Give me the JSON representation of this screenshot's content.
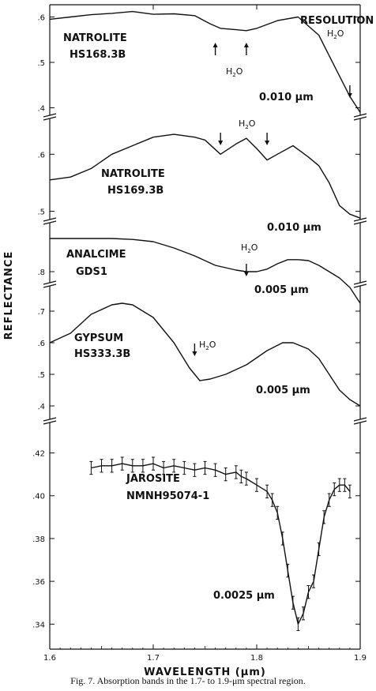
{
  "chart_data": {
    "type": "line",
    "xlabel": "WAVELENGTH (μm)",
    "ylabel": "REFLECTANCE",
    "xlim": [
      1.6,
      1.9
    ],
    "x_ticks": [
      "1.6",
      "1.7",
      "1.8",
      "1.9"
    ],
    "resolution_header": "RESOLUTION",
    "h2o_label": "H2O",
    "panels": [
      {
        "name": "NATROLITE",
        "sample": "HS168.3B",
        "resolution": "0.010 μm",
        "ylim": [
          0.38,
          0.62
        ],
        "y_ticks": [
          {
            "v": 0.6,
            "t": ".6"
          },
          {
            "v": 0.5,
            "t": ".5"
          },
          {
            "v": 0.4,
            "t": ".4"
          }
        ],
        "h2o_arrows": [
          1.76,
          1.79,
          1.89
        ],
        "x": [
          1.6,
          1.62,
          1.64,
          1.66,
          1.68,
          1.7,
          1.72,
          1.74,
          1.755,
          1.765,
          1.78,
          1.79,
          1.8,
          1.82,
          1.84,
          1.86,
          1.87,
          1.88,
          1.89,
          1.9
        ],
        "y": [
          0.595,
          0.6,
          0.605,
          0.608,
          0.612,
          0.606,
          0.607,
          0.603,
          0.585,
          0.575,
          0.572,
          0.57,
          0.575,
          0.592,
          0.6,
          0.56,
          0.515,
          0.47,
          0.425,
          0.39
        ]
      },
      {
        "name": "NATROLITE",
        "sample": "HS169.3B",
        "resolution": "0.010 μm",
        "ylim": [
          0.48,
          0.66
        ],
        "y_ticks": [
          {
            "v": 0.6,
            "t": ".6"
          },
          {
            "v": 0.5,
            "t": ".5"
          }
        ],
        "h2o_arrows": [
          1.765,
          1.81
        ],
        "x": [
          1.6,
          1.62,
          1.64,
          1.66,
          1.68,
          1.7,
          1.72,
          1.74,
          1.75,
          1.765,
          1.78,
          1.79,
          1.8,
          1.81,
          1.82,
          1.835,
          1.85,
          1.86,
          1.87,
          1.88,
          1.89,
          1.9
        ],
        "y": [
          0.555,
          0.56,
          0.575,
          0.6,
          0.615,
          0.63,
          0.635,
          0.63,
          0.625,
          0.6,
          0.618,
          0.628,
          0.61,
          0.59,
          0.6,
          0.615,
          0.595,
          0.58,
          0.55,
          0.51,
          0.495,
          0.488
        ]
      },
      {
        "name": "ANALCIME",
        "sample": "GDS1",
        "resolution": "0.005 μm",
        "ylim": [
          0.68,
          0.94
        ],
        "y_ticks": [
          {
            "v": 0.8,
            "t": ".8"
          }
        ],
        "h2o_arrows": [
          1.79
        ],
        "x": [
          1.6,
          1.62,
          1.64,
          1.66,
          1.68,
          1.7,
          1.72,
          1.74,
          1.76,
          1.78,
          1.79,
          1.8,
          1.81,
          1.82,
          1.83,
          1.84,
          1.85,
          1.86,
          1.87,
          1.88,
          1.89,
          1.9
        ],
        "y": [
          0.905,
          0.905,
          0.905,
          0.905,
          0.902,
          0.895,
          0.875,
          0.85,
          0.82,
          0.805,
          0.8,
          0.8,
          0.808,
          0.825,
          0.838,
          0.838,
          0.835,
          0.82,
          0.8,
          0.78,
          0.75,
          0.7
        ]
      },
      {
        "name": "GYPSUM",
        "sample": "HS333.3B",
        "resolution": "0.005 μm",
        "ylim": [
          0.36,
          0.76
        ],
        "y_ticks": [
          {
            "v": 0.7,
            "t": ".7"
          },
          {
            "v": 0.6,
            "t": ".6"
          },
          {
            "v": 0.5,
            "t": ".5"
          },
          {
            "v": 0.4,
            "t": ".4"
          }
        ],
        "h2o_arrows": [
          1.74
        ],
        "x": [
          1.6,
          1.62,
          1.64,
          1.66,
          1.67,
          1.68,
          1.7,
          1.72,
          1.735,
          1.745,
          1.755,
          1.77,
          1.79,
          1.81,
          1.825,
          1.835,
          1.85,
          1.86,
          1.87,
          1.88,
          1.89,
          1.9
        ],
        "y": [
          0.6,
          0.63,
          0.69,
          0.72,
          0.725,
          0.72,
          0.68,
          0.6,
          0.52,
          0.48,
          0.485,
          0.5,
          0.53,
          0.575,
          0.6,
          0.6,
          0.58,
          0.55,
          0.5,
          0.45,
          0.42,
          0.4
        ]
      },
      {
        "name": "JAROSITE",
        "sample": "NMNH95074-1",
        "resolution": "0.0025 μm",
        "ylim": [
          0.332,
          0.425
        ],
        "y_ticks": [
          {
            "v": 0.42,
            "t": ".42"
          },
          {
            "v": 0.4,
            "t": ".40"
          },
          {
            "v": 0.38,
            "t": ".38"
          },
          {
            "v": 0.36,
            "t": ".36"
          },
          {
            "v": 0.34,
            "t": ".34"
          }
        ],
        "x": [
          1.64,
          1.65,
          1.66,
          1.67,
          1.68,
          1.69,
          1.7,
          1.71,
          1.72,
          1.73,
          1.74,
          1.75,
          1.76,
          1.77,
          1.78,
          1.785,
          1.79,
          1.8,
          1.81,
          1.815,
          1.82,
          1.825,
          1.83,
          1.835,
          1.84,
          1.845,
          1.85,
          1.855,
          1.86,
          1.865,
          1.87,
          1.875,
          1.88,
          1.885,
          1.89
        ],
        "y": [
          0.413,
          0.414,
          0.414,
          0.415,
          0.414,
          0.414,
          0.415,
          0.413,
          0.414,
          0.413,
          0.412,
          0.413,
          0.412,
          0.41,
          0.411,
          0.409,
          0.408,
          0.405,
          0.402,
          0.398,
          0.392,
          0.38,
          0.365,
          0.35,
          0.34,
          0.345,
          0.355,
          0.36,
          0.375,
          0.39,
          0.398,
          0.403,
          0.405,
          0.405,
          0.402
        ],
        "error": 0.003
      }
    ]
  },
  "caption": "Fig. 7.  Absorption bands in the 1.7- to 1.9-μm spectral region."
}
